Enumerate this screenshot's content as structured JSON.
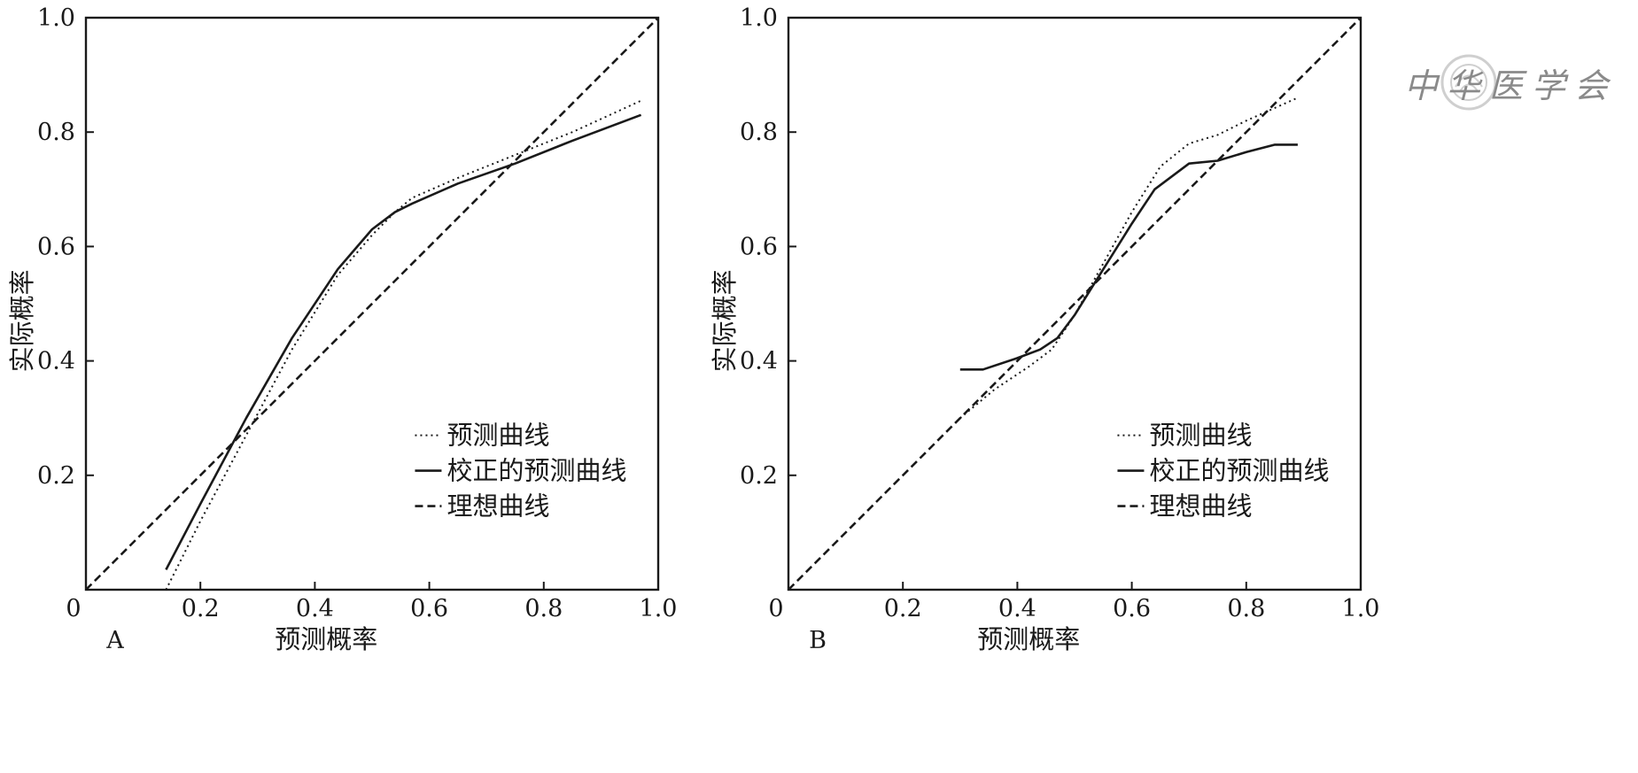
{
  "watermark": {
    "text": "中华医学会"
  },
  "chart_data": [
    {
      "type": "line",
      "panel_label": "A",
      "xlabel": "预测概率",
      "ylabel": "实际概率",
      "xlim": [
        0,
        1
      ],
      "ylim": [
        0,
        1
      ],
      "x_ticks": [
        "0",
        "0.2",
        "0.4",
        "0.6",
        "0.8",
        "1.0"
      ],
      "y_ticks": [
        "0.2",
        "0.4",
        "0.6",
        "0.8",
        "1.0"
      ],
      "grid": false,
      "legend_position": "bottom-right",
      "series": [
        {
          "name": "预测曲线",
          "style": "dotted",
          "x": [
            0.14,
            0.2,
            0.28,
            0.36,
            0.44,
            0.5,
            0.54,
            0.57,
            0.65,
            0.75,
            0.85,
            0.97
          ],
          "y": [
            0.0,
            0.12,
            0.27,
            0.42,
            0.55,
            0.62,
            0.66,
            0.685,
            0.72,
            0.76,
            0.8,
            0.855
          ]
        },
        {
          "name": "校正的预测曲线",
          "style": "solid",
          "x": [
            0.14,
            0.2,
            0.28,
            0.36,
            0.44,
            0.5,
            0.54,
            0.57,
            0.65,
            0.75,
            0.85,
            0.97
          ],
          "y": [
            0.035,
            0.15,
            0.3,
            0.44,
            0.56,
            0.63,
            0.66,
            0.675,
            0.71,
            0.745,
            0.785,
            0.83
          ]
        },
        {
          "name": "理想曲线",
          "style": "dashed",
          "x": [
            0,
            1
          ],
          "y": [
            0,
            1
          ]
        }
      ]
    },
    {
      "type": "line",
      "panel_label": "B",
      "xlabel": "预测概率",
      "ylabel": "实际概率",
      "xlim": [
        0,
        1
      ],
      "ylim": [
        0,
        1
      ],
      "x_ticks": [
        "0",
        "0.2",
        "0.4",
        "0.6",
        "0.8",
        "1.0"
      ],
      "y_ticks": [
        "0.2",
        "0.4",
        "0.6",
        "0.8",
        "1.0"
      ],
      "grid": false,
      "legend_position": "bottom-right",
      "series": [
        {
          "name": "预测曲线",
          "style": "dotted",
          "x": [
            0.3,
            0.36,
            0.42,
            0.46,
            0.5,
            0.55,
            0.6,
            0.65,
            0.7,
            0.75,
            0.8,
            0.89
          ],
          "y": [
            0.3,
            0.35,
            0.39,
            0.42,
            0.48,
            0.57,
            0.66,
            0.74,
            0.78,
            0.795,
            0.82,
            0.86
          ]
        },
        {
          "name": "校正的预测曲线",
          "style": "solid",
          "x": [
            0.3,
            0.34,
            0.4,
            0.44,
            0.47,
            0.5,
            0.55,
            0.6,
            0.64,
            0.7,
            0.75,
            0.8,
            0.85,
            0.89
          ],
          "y": [
            0.385,
            0.385,
            0.405,
            0.42,
            0.44,
            0.48,
            0.56,
            0.64,
            0.7,
            0.745,
            0.75,
            0.765,
            0.778,
            0.778
          ]
        },
        {
          "name": "理想曲线",
          "style": "dashed",
          "x": [
            0,
            1
          ],
          "y": [
            0,
            1
          ]
        }
      ]
    }
  ]
}
